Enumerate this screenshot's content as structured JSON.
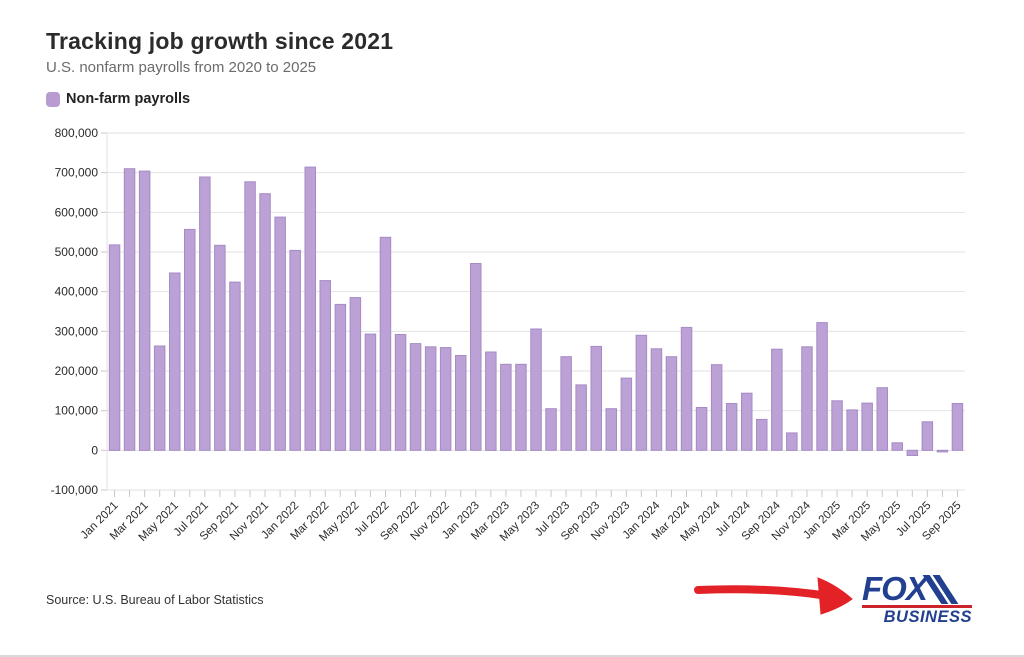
{
  "header": {
    "title": "Tracking job growth since 2021",
    "subtitle": "U.S. nonfarm payrolls from 2020 to 2025"
  },
  "legend": {
    "label": "Non-farm payrolls",
    "swatch_color": "#b median79bd1"
  },
  "chart_data": {
    "type": "bar",
    "title": "Tracking job growth since 2021",
    "series_name": "Non-farm payrolls",
    "categories": [
      "Jan 2021",
      "Feb 2021",
      "Mar 2021",
      "Apr 2021",
      "May 2021",
      "Jun 2021",
      "Jul 2021",
      "Aug 2021",
      "Sep 2021",
      "Oct 2021",
      "Nov 2021",
      "Dec 2021",
      "Jan 2022",
      "Feb 2022",
      "Mar 2022",
      "Apr 2022",
      "May 2022",
      "Jun 2022",
      "Jul 2022",
      "Aug 2022",
      "Sep 2022",
      "Oct 2022",
      "Nov 2022",
      "Dec 2022",
      "Jan 2023",
      "Feb 2023",
      "Mar 2023",
      "Apr 2023",
      "May 2023",
      "Jun 2023",
      "Jul 2023",
      "Aug 2023",
      "Sep 2023",
      "Oct 2023",
      "Nov 2023",
      "Dec 2023",
      "Jan 2024",
      "Feb 2024",
      "Mar 2024",
      "Apr 2024",
      "May 2024",
      "Jun 2024",
      "Jul 2024",
      "Aug 2024",
      "Sep 2024",
      "Oct 2024",
      "Nov 2024",
      "Dec 2024",
      "Jan 2025",
      "Feb 2025",
      "Mar 2025",
      "Apr 2025",
      "May 2025",
      "Jun 2025",
      "Jul 2025",
      "Aug 2025",
      "Sep 2025"
    ],
    "values": [
      518000,
      710000,
      704000,
      263000,
      447000,
      557000,
      689000,
      517000,
      424000,
      677000,
      647000,
      588000,
      504000,
      714000,
      428000,
      368000,
      385000,
      293000,
      537000,
      292000,
      269000,
      261000,
      259000,
      239000,
      471000,
      248000,
      217000,
      217000,
      306000,
      105000,
      236000,
      165000,
      262000,
      105000,
      182000,
      290000,
      256000,
      236000,
      310000,
      108000,
      216000,
      118000,
      144000,
      78000,
      255000,
      44000,
      261000,
      322000,
      125000,
      102000,
      119000,
      158000,
      19000,
      -13000,
      72000,
      -4000,
      118000
    ],
    "ylim": [
      -100000,
      800000
    ],
    "ytick_step": 100000,
    "ytick_labels": [
      "800,000",
      "700,000",
      "600,000",
      "500,000",
      "400,000",
      "300,000",
      "200,000",
      "100,000",
      "0",
      "-100,000"
    ],
    "xtick_label_every": 2,
    "grid": true,
    "legend_position": "top-left",
    "bar_fill": "#bba1d5",
    "bar_stroke": "#a68bc4",
    "grid_color": "#e2e2e4",
    "axis_tick_color": "#c8c8cc",
    "axis_label_color": "#2b2b2b"
  },
  "footer": {
    "source": "Source: U.S. Bureau of Labor Statistics"
  },
  "branding": {
    "logo_line1": "FOX",
    "logo_line2": "BUSINESS",
    "logo_color": "#223f90",
    "logo_rule_color": "#cc2229",
    "arrow_color": "#e32227"
  }
}
